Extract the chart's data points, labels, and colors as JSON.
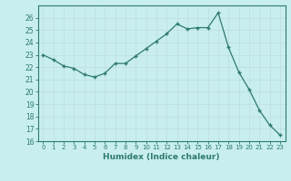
{
  "x": [
    0,
    1,
    2,
    3,
    4,
    5,
    6,
    7,
    8,
    9,
    10,
    11,
    12,
    13,
    14,
    15,
    16,
    17,
    18,
    19,
    20,
    21,
    22,
    23
  ],
  "y": [
    23.0,
    22.6,
    22.1,
    21.9,
    21.4,
    21.2,
    21.5,
    22.3,
    22.3,
    22.9,
    23.5,
    24.1,
    24.7,
    25.5,
    25.1,
    25.2,
    25.2,
    26.4,
    23.6,
    21.6,
    20.2,
    18.5,
    17.3,
    16.5
  ],
  "xlim": [
    -0.5,
    23.5
  ],
  "ylim": [
    16,
    27
  ],
  "yticks": [
    16,
    17,
    18,
    19,
    20,
    21,
    22,
    23,
    24,
    25,
    26
  ],
  "xticks": [
    0,
    1,
    2,
    3,
    4,
    5,
    6,
    7,
    8,
    9,
    10,
    11,
    12,
    13,
    14,
    15,
    16,
    17,
    18,
    19,
    20,
    21,
    22,
    23
  ],
  "xlabel": "Humidex (Indice chaleur)",
  "line_color": "#2d7a6e",
  "marker": "+",
  "bg_color": "#c8eef0",
  "grid_color": "#c0dcde",
  "tick_color": "#2d7a6e",
  "label_color": "#2d7a6e"
}
